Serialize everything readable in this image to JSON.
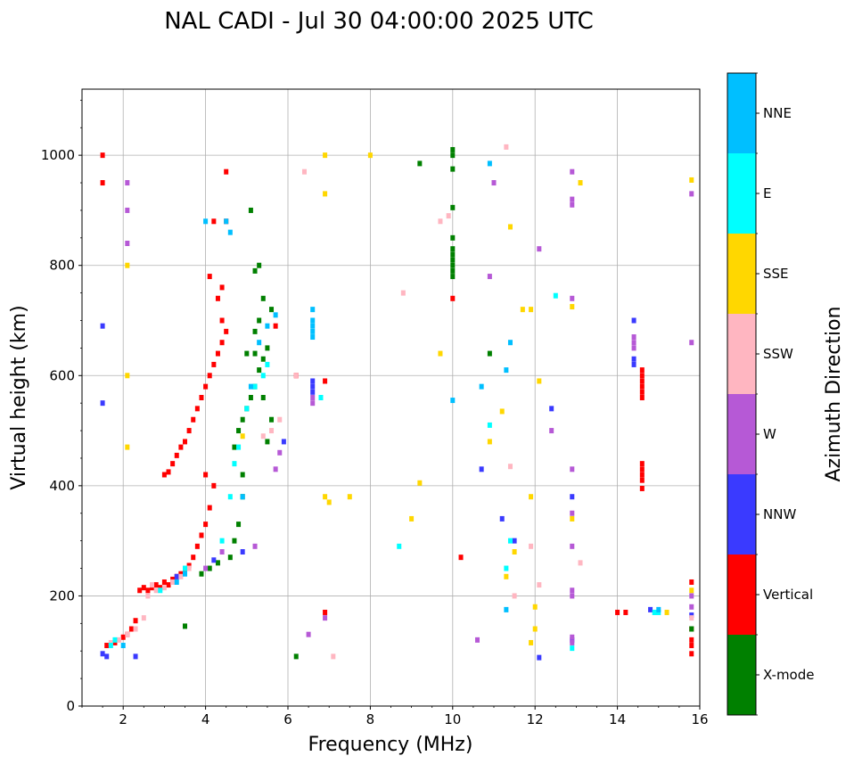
{
  "chart_data": {
    "type": "scatter",
    "title": "NAL CADI - Jul 30 04:00:00 2025 UTC",
    "xlabel": "Frequency (MHz)",
    "ylabel": "Virtual height (km)",
    "xlim": [
      1,
      16
    ],
    "ylim": [
      0,
      1120
    ],
    "xticks": [
      2,
      4,
      6,
      8,
      10,
      12,
      14,
      16
    ],
    "yticks": [
      0,
      200,
      400,
      600,
      800,
      1000
    ],
    "grid": true,
    "colorbar": {
      "label": "Azimuth Direction",
      "categories": [
        {
          "name": "X-mode",
          "color": "#008000"
        },
        {
          "name": "Vertical",
          "color": "#ff0000"
        },
        {
          "name": "NNW",
          "color": "#3a3aff"
        },
        {
          "name": "W",
          "color": "#b659d6"
        },
        {
          "name": "SSW",
          "color": "#ffb6c1"
        },
        {
          "name": "SSE",
          "color": "#ffd700"
        },
        {
          "name": "E",
          "color": "#00ffff"
        },
        {
          "name": "NNE",
          "color": "#00bfff"
        }
      ]
    },
    "series": [
      {
        "name": "Vertical",
        "color": "#ff0000",
        "points": [
          [
            1.5,
            1000
          ],
          [
            1.5,
            950
          ],
          [
            1.6,
            110
          ],
          [
            1.8,
            115
          ],
          [
            2.0,
            125
          ],
          [
            2.1,
            130
          ],
          [
            2.2,
            140
          ],
          [
            2.3,
            155
          ],
          [
            2.4,
            210
          ],
          [
            2.5,
            215
          ],
          [
            2.6,
            210
          ],
          [
            2.7,
            215
          ],
          [
            2.8,
            220
          ],
          [
            2.9,
            215
          ],
          [
            3.0,
            225
          ],
          [
            3.1,
            220
          ],
          [
            3.2,
            230
          ],
          [
            3.3,
            235
          ],
          [
            3.4,
            240
          ],
          [
            3.5,
            245
          ],
          [
            3.6,
            255
          ],
          [
            3.7,
            270
          ],
          [
            3.8,
            290
          ],
          [
            3.9,
            310
          ],
          [
            4.0,
            330
          ],
          [
            4.1,
            360
          ],
          [
            4.2,
            400
          ],
          [
            4.0,
            420
          ],
          [
            3.0,
            420
          ],
          [
            3.1,
            425
          ],
          [
            3.2,
            440
          ],
          [
            3.3,
            455
          ],
          [
            3.4,
            470
          ],
          [
            3.5,
            480
          ],
          [
            3.6,
            500
          ],
          [
            3.7,
            520
          ],
          [
            3.8,
            540
          ],
          [
            3.9,
            560
          ],
          [
            4.0,
            580
          ],
          [
            4.1,
            600
          ],
          [
            4.2,
            620
          ],
          [
            4.3,
            640
          ],
          [
            4.4,
            660
          ],
          [
            4.5,
            680
          ],
          [
            4.4,
            700
          ],
          [
            4.3,
            740
          ],
          [
            4.4,
            760
          ],
          [
            4.1,
            780
          ],
          [
            4.2,
            880
          ],
          [
            4.5,
            880
          ],
          [
            4.5,
            970
          ],
          [
            5.7,
            690
          ],
          [
            6.2,
            600
          ],
          [
            6.9,
            590
          ],
          [
            6.9,
            170
          ],
          [
            10.0,
            740
          ],
          [
            10.2,
            270
          ],
          [
            14.0,
            170
          ],
          [
            14.2,
            170
          ],
          [
            14.6,
            610
          ],
          [
            14.6,
            600
          ],
          [
            14.6,
            590
          ],
          [
            14.6,
            580
          ],
          [
            14.6,
            570
          ],
          [
            14.6,
            560
          ],
          [
            14.6,
            440
          ],
          [
            14.6,
            430
          ],
          [
            14.6,
            420
          ],
          [
            14.6,
            410
          ],
          [
            14.6,
            395
          ],
          [
            15.8,
            225
          ],
          [
            15.8,
            140
          ],
          [
            15.8,
            120
          ],
          [
            15.8,
            110
          ],
          [
            15.8,
            95
          ]
        ]
      },
      {
        "name": "X-mode",
        "color": "#008000",
        "points": [
          [
            3.5,
            145
          ],
          [
            3.9,
            240
          ],
          [
            4.1,
            250
          ],
          [
            4.3,
            260
          ],
          [
            4.6,
            270
          ],
          [
            4.7,
            300
          ],
          [
            4.8,
            330
          ],
          [
            4.9,
            380
          ],
          [
            4.9,
            420
          ],
          [
            4.7,
            470
          ],
          [
            4.8,
            500
          ],
          [
            4.9,
            520
          ],
          [
            5.0,
            540
          ],
          [
            5.1,
            560
          ],
          [
            5.2,
            580
          ],
          [
            5.3,
            610
          ],
          [
            5.4,
            630
          ],
          [
            5.5,
            650
          ],
          [
            5.2,
            680
          ],
          [
            5.3,
            700
          ],
          [
            5.6,
            720
          ],
          [
            5.4,
            740
          ],
          [
            5.2,
            790
          ],
          [
            5.3,
            800
          ],
          [
            5.1,
            900
          ],
          [
            5.0,
            640
          ],
          [
            5.2,
            640
          ],
          [
            5.4,
            560
          ],
          [
            5.6,
            520
          ],
          [
            5.5,
            480
          ],
          [
            6.2,
            90
          ],
          [
            9.2,
            985
          ],
          [
            10.0,
            1000
          ],
          [
            10.0,
            1010
          ],
          [
            10.0,
            975
          ],
          [
            10.0,
            905
          ],
          [
            10.0,
            850
          ],
          [
            10.0,
            830
          ],
          [
            10.0,
            820
          ],
          [
            10.0,
            810
          ],
          [
            10.0,
            800
          ],
          [
            10.0,
            790
          ],
          [
            10.0,
            780
          ],
          [
            10.9,
            640
          ],
          [
            15.8,
            140
          ]
        ]
      },
      {
        "name": "NNW",
        "color": "#3a3aff",
        "points": [
          [
            1.5,
            690
          ],
          [
            1.5,
            550
          ],
          [
            1.5,
            95
          ],
          [
            1.6,
            90
          ],
          [
            2.3,
            90
          ],
          [
            3.3,
            235
          ],
          [
            4.2,
            265
          ],
          [
            4.9,
            280
          ],
          [
            5.9,
            480
          ],
          [
            6.6,
            590
          ],
          [
            6.6,
            580
          ],
          [
            6.6,
            570
          ],
          [
            10.7,
            430
          ],
          [
            11.2,
            340
          ],
          [
            11.5,
            300
          ],
          [
            12.1,
            88
          ],
          [
            12.4,
            540
          ],
          [
            12.9,
            380
          ],
          [
            12.9,
            120
          ],
          [
            14.4,
            700
          ],
          [
            14.4,
            630
          ],
          [
            14.4,
            620
          ],
          [
            14.8,
            175
          ],
          [
            15.8,
            165
          ]
        ]
      },
      {
        "name": "W",
        "color": "#b659d6",
        "points": [
          [
            2.1,
            950
          ],
          [
            2.1,
            900
          ],
          [
            2.1,
            840
          ],
          [
            4.0,
            250
          ],
          [
            4.4,
            280
          ],
          [
            5.2,
            290
          ],
          [
            5.7,
            430
          ],
          [
            5.8,
            460
          ],
          [
            6.6,
            560
          ],
          [
            6.6,
            550
          ],
          [
            6.5,
            130
          ],
          [
            6.9,
            160
          ],
          [
            10.6,
            120
          ],
          [
            10.9,
            780
          ],
          [
            11.0,
            950
          ],
          [
            12.1,
            830
          ],
          [
            12.4,
            500
          ],
          [
            12.9,
            430
          ],
          [
            12.9,
            350
          ],
          [
            12.9,
            290
          ],
          [
            12.9,
            210
          ],
          [
            12.9,
            200
          ],
          [
            12.9,
            125
          ],
          [
            12.9,
            115
          ],
          [
            12.9,
            740
          ],
          [
            12.9,
            920
          ],
          [
            12.9,
            910
          ],
          [
            12.9,
            970
          ],
          [
            14.4,
            670
          ],
          [
            14.4,
            660
          ],
          [
            14.4,
            650
          ],
          [
            15.8,
            660
          ],
          [
            15.8,
            930
          ],
          [
            15.8,
            200
          ],
          [
            15.8,
            180
          ]
        ]
      },
      {
        "name": "SSW",
        "color": "#ffb6c1",
        "points": [
          [
            1.7,
            115
          ],
          [
            1.9,
            120
          ],
          [
            2.1,
            130
          ],
          [
            2.3,
            140
          ],
          [
            2.5,
            160
          ],
          [
            2.6,
            200
          ],
          [
            2.7,
            220
          ],
          [
            2.8,
            210
          ],
          [
            3.0,
            215
          ],
          [
            3.2,
            225
          ],
          [
            3.4,
            235
          ],
          [
            3.6,
            250
          ],
          [
            5.4,
            490
          ],
          [
            5.6,
            500
          ],
          [
            5.8,
            520
          ],
          [
            6.2,
            600
          ],
          [
            6.4,
            970
          ],
          [
            7.1,
            90
          ],
          [
            8.8,
            750
          ],
          [
            9.7,
            880
          ],
          [
            9.9,
            890
          ],
          [
            11.3,
            1015
          ],
          [
            11.4,
            435
          ],
          [
            11.5,
            200
          ],
          [
            11.9,
            290
          ],
          [
            12.1,
            220
          ],
          [
            13.1,
            260
          ],
          [
            15.8,
            160
          ]
        ]
      },
      {
        "name": "SSE",
        "color": "#ffd700",
        "points": [
          [
            2.1,
            800
          ],
          [
            2.1,
            600
          ],
          [
            2.1,
            470
          ],
          [
            4.9,
            490
          ],
          [
            6.9,
            1000
          ],
          [
            6.9,
            930
          ],
          [
            6.9,
            380
          ],
          [
            7.0,
            370
          ],
          [
            7.5,
            380
          ],
          [
            8.0,
            1000
          ],
          [
            9.0,
            340
          ],
          [
            9.2,
            405
          ],
          [
            9.7,
            640
          ],
          [
            10.9,
            480
          ],
          [
            11.2,
            535
          ],
          [
            11.3,
            235
          ],
          [
            11.4,
            870
          ],
          [
            11.5,
            280
          ],
          [
            11.7,
            720
          ],
          [
            11.9,
            720
          ],
          [
            11.9,
            380
          ],
          [
            11.9,
            115
          ],
          [
            12.0,
            180
          ],
          [
            12.0,
            140
          ],
          [
            12.1,
            590
          ],
          [
            12.9,
            340
          ],
          [
            12.9,
            725
          ],
          [
            13.1,
            950
          ],
          [
            15.2,
            170
          ],
          [
            15.8,
            955
          ],
          [
            15.8,
            210
          ]
        ]
      },
      {
        "name": "E",
        "color": "#00ffff",
        "points": [
          [
            1.7,
            110
          ],
          [
            1.8,
            120
          ],
          [
            2.9,
            210
          ],
          [
            3.5,
            250
          ],
          [
            4.4,
            300
          ],
          [
            4.6,
            380
          ],
          [
            4.7,
            440
          ],
          [
            4.8,
            470
          ],
          [
            5.0,
            540
          ],
          [
            5.2,
            580
          ],
          [
            5.4,
            600
          ],
          [
            5.5,
            620
          ],
          [
            6.8,
            560
          ],
          [
            8.7,
            290
          ],
          [
            10.9,
            510
          ],
          [
            11.3,
            250
          ],
          [
            11.4,
            300
          ],
          [
            12.5,
            745
          ],
          [
            12.9,
            105
          ],
          [
            14.9,
            170
          ],
          [
            15.0,
            170
          ]
        ]
      },
      {
        "name": "NNE",
        "color": "#00bfff",
        "points": [
          [
            2.0,
            110
          ],
          [
            3.3,
            225
          ],
          [
            3.5,
            240
          ],
          [
            4.0,
            880
          ],
          [
            4.5,
            880
          ],
          [
            4.6,
            860
          ],
          [
            4.9,
            380
          ],
          [
            5.1,
            580
          ],
          [
            5.3,
            660
          ],
          [
            5.5,
            690
          ],
          [
            5.7,
            710
          ],
          [
            6.6,
            720
          ],
          [
            6.6,
            700
          ],
          [
            6.6,
            690
          ],
          [
            6.6,
            680
          ],
          [
            6.6,
            670
          ],
          [
            10.0,
            555
          ],
          [
            10.7,
            580
          ],
          [
            10.9,
            985
          ],
          [
            11.3,
            610
          ],
          [
            11.4,
            660
          ],
          [
            11.3,
            175
          ],
          [
            15.0,
            175
          ]
        ]
      }
    ]
  }
}
